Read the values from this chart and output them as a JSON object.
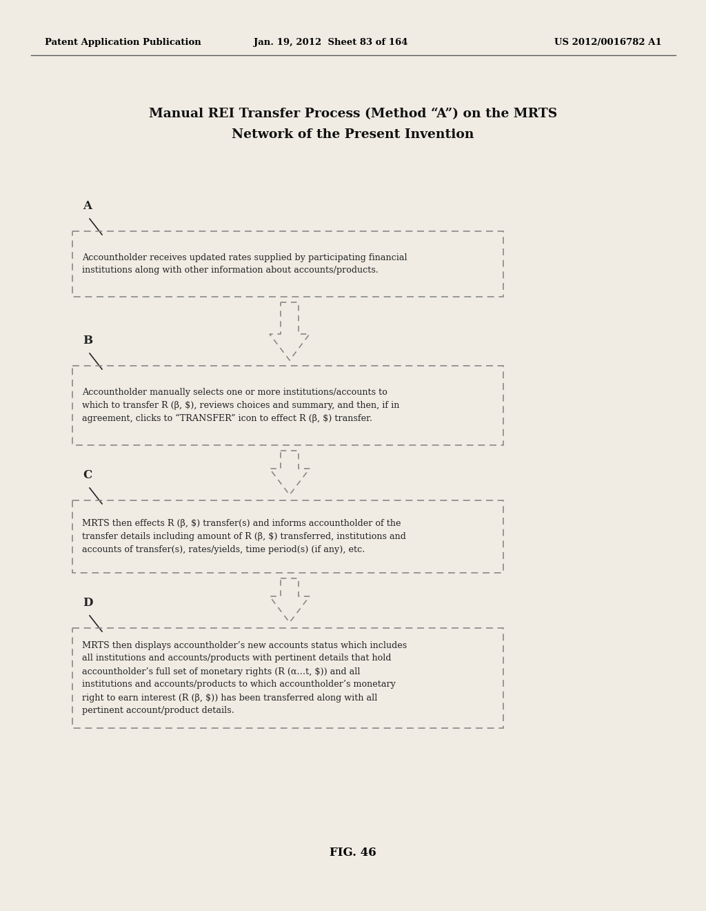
{
  "header_left": "Patent Application Publication",
  "header_mid": "Jan. 19, 2012  Sheet 83 of 164",
  "header_right": "US 2012/0016782 A1",
  "title_line1": "Manual REI Transfer Process (Method “A”) on the MRTS",
  "title_line2": "Network of the Present Invention",
  "fig_label": "FIG. 46",
  "steps": [
    {
      "label": "A",
      "text": "Accountholder receives updated rates supplied by participating financial\ninstitutions along with other information about accounts/products."
    },
    {
      "label": "B",
      "text": "Accountholder manually selects one or more institutions/accounts to\nwhich to transfer R (β, $), reviews choices and summary, and then, if in\nagreement, clicks to “TRANSFER” icon to effect R (β, $) transfer."
    },
    {
      "label": "C",
      "text": "MRTS then effects R (β, $) transfer(s) and informs accountholder of the\ntransfer details including amount of R (β, $) transferred, institutions and\naccounts of transfer(s), rates/yields, time period(s) (if any), etc."
    },
    {
      "label": "D",
      "text": "MRTS then displays accountholder’s new accounts status which includes\nall institutions and accounts/products with pertinent details that hold\naccountholder’s full set of monetary rights (R (α…t, $)) and all\ninstitutions and accounts/products to which accountholder’s monetary\nright to earn interest (R (β, $)) has been transferred along with all\npertinent account/product details."
    }
  ],
  "bg_color": "#f0ece4",
  "box_edge_color": "#888888",
  "box_fill_color": "#f0ece4",
  "text_color": "#222222",
  "header_color": "#000000",
  "arrow_color": "#888888",
  "title_color": "#111111",
  "header_line_color": "#555555"
}
